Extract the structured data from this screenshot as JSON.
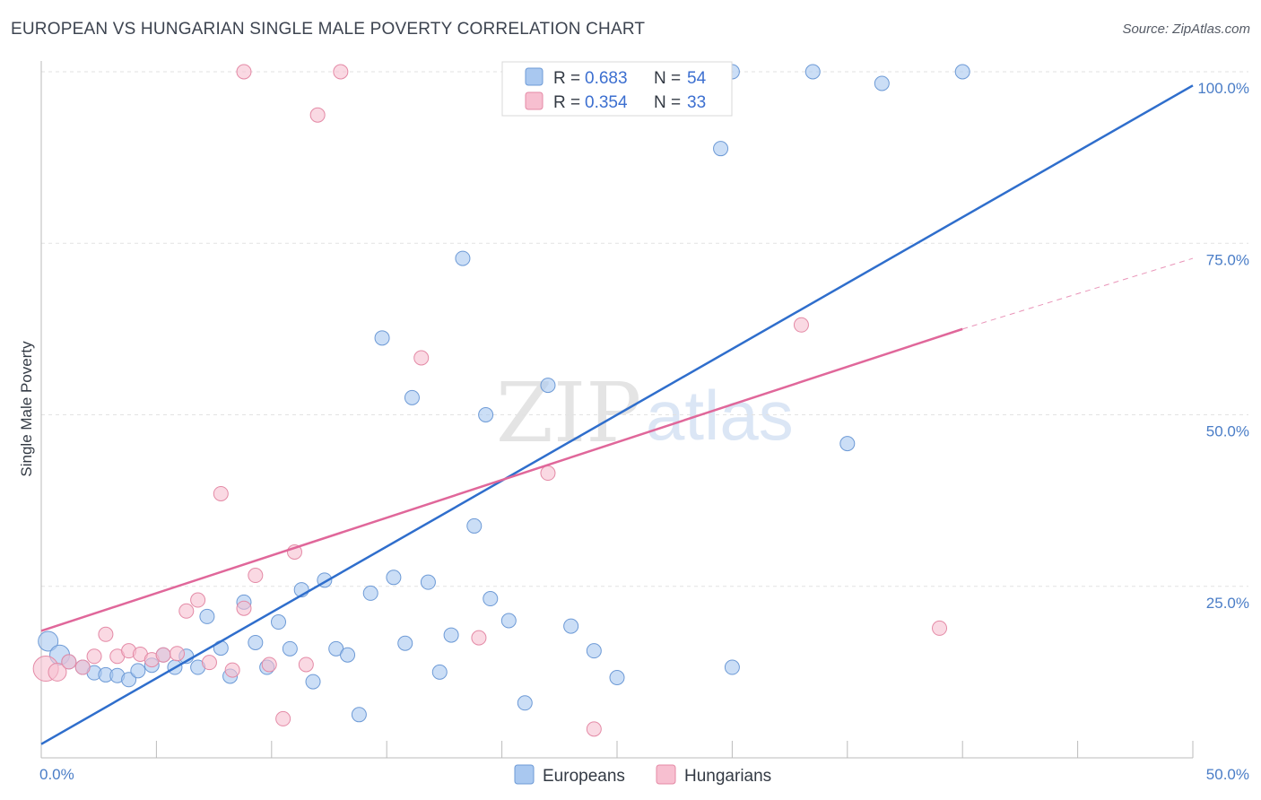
{
  "header": {
    "title": "EUROPEAN VS HUNGARIAN SINGLE MALE POVERTY CORRELATION CHART",
    "source": "Source: ZipAtlas.com"
  },
  "watermark": {
    "zip": "ZIP",
    "atlas": "atlas"
  },
  "chart_data": {
    "type": "scatter",
    "title": "EUROPEAN VS HUNGARIAN SINGLE MALE POVERTY CORRELATION CHART",
    "xlabel": "",
    "ylabel": "Single Male Poverty",
    "xlim": [
      0,
      50
    ],
    "ylim": [
      0,
      100
    ],
    "x_tick_labels": [
      "0.0%",
      "50.0%"
    ],
    "y_ticks": [
      25,
      50,
      75,
      100
    ],
    "y_tick_labels": [
      "25.0%",
      "50.0%",
      "75.0%",
      "100.0%"
    ],
    "grid": true,
    "legend_placement": "top-center",
    "legend_stats": [
      {
        "r_label": "R = ",
        "r": "0.683",
        "n_label": "N = ",
        "n": "54"
      },
      {
        "r_label": "R = ",
        "r": "0.354",
        "n_label": "N = ",
        "n": "33"
      }
    ],
    "series": [
      {
        "name": "Europeans",
        "color": "#a9c8f0",
        "stroke": "#6d9ad6",
        "line_color": "#2f6ecc",
        "trend": {
          "x": [
            0,
            50
          ],
          "y": [
            2,
            98
          ]
        },
        "points": [
          [
            0.3,
            17.0
          ],
          [
            0.8,
            15.0
          ],
          [
            1.2,
            14.0
          ],
          [
            1.8,
            13.2
          ],
          [
            2.3,
            12.4
          ],
          [
            2.8,
            12.1
          ],
          [
            3.3,
            12.0
          ],
          [
            3.8,
            11.4
          ],
          [
            4.2,
            12.7
          ],
          [
            4.8,
            13.5
          ],
          [
            5.3,
            15.0
          ],
          [
            5.8,
            13.2
          ],
          [
            6.3,
            14.8
          ],
          [
            6.8,
            13.2
          ],
          [
            7.2,
            20.6
          ],
          [
            7.8,
            16.0
          ],
          [
            8.2,
            11.9
          ],
          [
            8.8,
            22.7
          ],
          [
            9.3,
            16.8
          ],
          [
            9.8,
            13.2
          ],
          [
            10.3,
            19.8
          ],
          [
            10.8,
            15.9
          ],
          [
            11.3,
            24.5
          ],
          [
            11.8,
            11.1
          ],
          [
            12.3,
            25.9
          ],
          [
            12.8,
            15.9
          ],
          [
            13.3,
            15.0
          ],
          [
            13.8,
            6.3
          ],
          [
            14.3,
            24.0
          ],
          [
            14.8,
            61.2
          ],
          [
            15.3,
            26.3
          ],
          [
            15.8,
            16.7
          ],
          [
            16.1,
            52.5
          ],
          [
            16.8,
            25.6
          ],
          [
            17.3,
            12.5
          ],
          [
            17.8,
            17.9
          ],
          [
            18.3,
            72.8
          ],
          [
            18.8,
            33.8
          ],
          [
            19.3,
            50.0
          ],
          [
            19.5,
            23.2
          ],
          [
            20.3,
            20.0
          ],
          [
            21.0,
            8.0
          ],
          [
            22.0,
            54.3
          ],
          [
            23.0,
            19.2
          ],
          [
            24.0,
            15.6
          ],
          [
            25.0,
            11.7
          ],
          [
            27.0,
            100.0
          ],
          [
            29.5,
            88.8
          ],
          [
            30.0,
            13.2
          ],
          [
            30.0,
            100.0
          ],
          [
            33.5,
            100.0
          ],
          [
            35.0,
            45.8
          ],
          [
            36.5,
            98.3
          ],
          [
            40.0,
            100.0
          ]
        ]
      },
      {
        "name": "Hungarians",
        "color": "#f7bfd0",
        "stroke": "#e48aa6",
        "line_color": "#e0679a",
        "trend": {
          "x": [
            0,
            40
          ],
          "y": [
            18.5,
            62.5
          ]
        },
        "trend_extension": {
          "x": [
            40,
            50
          ],
          "y": [
            62.5,
            72.8
          ]
        },
        "points": [
          [
            0.2,
            13.0
          ],
          [
            0.7,
            12.5
          ],
          [
            1.2,
            14.0
          ],
          [
            1.8,
            13.2
          ],
          [
            2.3,
            14.8
          ],
          [
            2.8,
            18.0
          ],
          [
            3.3,
            14.8
          ],
          [
            3.8,
            15.6
          ],
          [
            4.3,
            15.1
          ],
          [
            4.8,
            14.3
          ],
          [
            5.3,
            15.0
          ],
          [
            5.9,
            15.2
          ],
          [
            6.3,
            21.4
          ],
          [
            6.8,
            23.0
          ],
          [
            7.3,
            13.9
          ],
          [
            7.8,
            38.5
          ],
          [
            8.3,
            12.8
          ],
          [
            8.8,
            21.8
          ],
          [
            9.3,
            26.6
          ],
          [
            9.9,
            13.6
          ],
          [
            10.5,
            5.7
          ],
          [
            11.0,
            30.0
          ],
          [
            11.5,
            13.6
          ],
          [
            12.0,
            93.7
          ],
          [
            13.0,
            100.0
          ],
          [
            16.5,
            58.3
          ],
          [
            19.0,
            17.5
          ],
          [
            22.0,
            41.5
          ],
          [
            24.0,
            4.2
          ],
          [
            27.0,
            100.0
          ],
          [
            33.0,
            63.1
          ],
          [
            39.0,
            18.9
          ],
          [
            8.8,
            100.0
          ]
        ]
      }
    ]
  }
}
